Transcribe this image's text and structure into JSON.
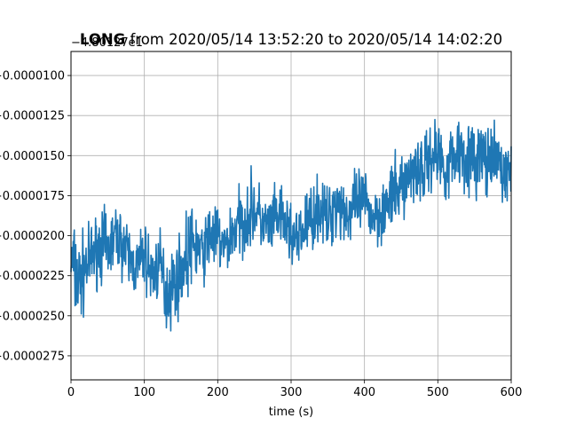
{
  "chart_data": {
    "type": "line",
    "title_bold": "LONG",
    "title_rest": " from 2020/05/14 13:52:20 to 2020/05/14 14:02:20",
    "xlabel": "time (s)",
    "ylabel": "",
    "y_offset_label": "−4.80127e1",
    "xlim": [
      0,
      600
    ],
    "ylim": [
      -2.9e-05,
      -8.5e-06
    ],
    "x_ticks": [
      {
        "value": 0,
        "label": "0"
      },
      {
        "value": 100,
        "label": "100"
      },
      {
        "value": 200,
        "label": "200"
      },
      {
        "value": 300,
        "label": "300"
      },
      {
        "value": 400,
        "label": "400"
      },
      {
        "value": 500,
        "label": "500"
      },
      {
        "value": 600,
        "label": "600"
      }
    ],
    "y_ticks": [
      {
        "value": -1e-05,
        "label": "−0.0000100"
      },
      {
        "value": -1.25e-05,
        "label": "−0.0000125"
      },
      {
        "value": -1.5e-05,
        "label": "−0.0000150"
      },
      {
        "value": -1.75e-05,
        "label": "−0.0000175"
      },
      {
        "value": -2e-05,
        "label": "−0.0000200"
      },
      {
        "value": -2.25e-05,
        "label": "−0.0000225"
      },
      {
        "value": -2.5e-05,
        "label": "−0.0000250"
      },
      {
        "value": -2.75e-05,
        "label": "−0.0000275"
      }
    ],
    "grid": true,
    "series": [
      {
        "color": "#1f77b4",
        "x": [
          0,
          10,
          20,
          30,
          40,
          50,
          60,
          70,
          80,
          90,
          100,
          110,
          120,
          130,
          140,
          150,
          160,
          170,
          180,
          190,
          200,
          210,
          220,
          230,
          240,
          250,
          260,
          270,
          280,
          290,
          300,
          310,
          320,
          330,
          340,
          350,
          360,
          370,
          380,
          390,
          400,
          410,
          420,
          430,
          440,
          450,
          460,
          470,
          480,
          490,
          500,
          510,
          520,
          530,
          540,
          550,
          560,
          570,
          580,
          590,
          600
        ],
        "y": [
          -2.15e-05,
          -2.3e-05,
          -2.2e-05,
          -2.12e-05,
          -2.05e-05,
          -2.1e-05,
          -2e-05,
          -2.05e-05,
          -2.15e-05,
          -2.2e-05,
          -2.12e-05,
          -2.25e-05,
          -2.18e-05,
          -2.35e-05,
          -2.3e-05,
          -2.22e-05,
          -2.1e-05,
          -2.05e-05,
          -2.12e-05,
          -1.98e-05,
          -2.02e-05,
          -2.08e-05,
          -1.98e-05,
          -1.92e-05,
          -1.88e-05,
          -1.82e-05,
          -1.92e-05,
          -1.96e-05,
          -1.88e-05,
          -1.92e-05,
          -1.98e-05,
          -2.05e-05,
          -1.92e-05,
          -1.88e-05,
          -1.82e-05,
          -1.92e-05,
          -1.78e-05,
          -1.82e-05,
          -1.88e-05,
          -1.8e-05,
          -1.78e-05,
          -1.88e-05,
          -1.85e-05,
          -1.82e-05,
          -1.75e-05,
          -1.68e-05,
          -1.65e-05,
          -1.55e-05,
          -1.6e-05,
          -1.5e-05,
          -1.48e-05,
          -1.58e-05,
          -1.52e-05,
          -1.45e-05,
          -1.5e-05,
          -1.55e-05,
          -1.48e-05,
          -1.58e-05,
          -1.52e-05,
          -1.62e-05,
          -1.58e-05
        ],
        "amplitude": [
          4e-06,
          4.5e-06,
          3.2e-06,
          3e-06,
          3.2e-06,
          3.5e-06,
          2.8e-06,
          3e-06,
          3e-06,
          2.8e-06,
          3e-06,
          3e-06,
          3.2e-06,
          4e-06,
          3.5e-06,
          3.2e-06,
          4e-06,
          3.2e-06,
          2.8e-06,
          3e-06,
          3e-06,
          2.8e-06,
          3e-06,
          3.2e-06,
          3e-06,
          3.5e-06,
          2.8e-06,
          3e-06,
          2.8e-06,
          2.8e-06,
          3e-06,
          2.8e-06,
          3e-06,
          3e-06,
          3e-06,
          2.8e-06,
          3.5e-06,
          3e-06,
          2.8e-06,
          3e-06,
          3e-06,
          2.8e-06,
          3e-06,
          3e-06,
          3e-06,
          3e-06,
          3e-06,
          3.5e-06,
          3e-06,
          3e-06,
          3.5e-06,
          3.2e-06,
          3.2e-06,
          3.5e-06,
          3.2e-06,
          3.5e-06,
          3.2e-06,
          3e-06,
          3e-06,
          3e-06,
          3e-06
        ]
      }
    ]
  }
}
